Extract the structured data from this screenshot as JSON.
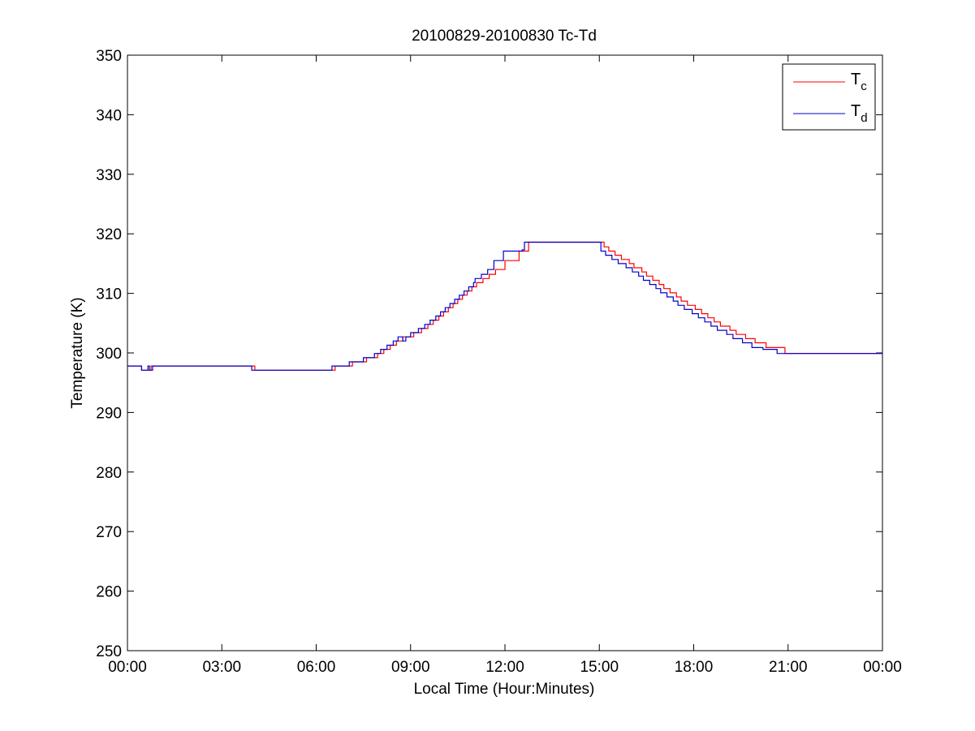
{
  "chart_data": {
    "type": "line",
    "title": "20100829-20100830 Tc-Td",
    "xlabel": "Local Time (Hour:Minutes)",
    "ylabel": "Temperature (K)",
    "x_unit": "hours",
    "xlim": [
      0,
      24
    ],
    "ylim": [
      250,
      350
    ],
    "xticks": [
      {
        "value": 0,
        "label": "00:00"
      },
      {
        "value": 3,
        "label": "03:00"
      },
      {
        "value": 6,
        "label": "06:00"
      },
      {
        "value": 9,
        "label": "09:00"
      },
      {
        "value": 12,
        "label": "12:00"
      },
      {
        "value": 15,
        "label": "15:00"
      },
      {
        "value": 18,
        "label": "18:00"
      },
      {
        "value": 21,
        "label": "21:00"
      },
      {
        "value": 24,
        "label": "00:00"
      }
    ],
    "yticks": [
      250,
      260,
      270,
      280,
      290,
      300,
      310,
      320,
      330,
      340,
      350
    ],
    "grid": false,
    "legend_position": "top-right",
    "series": [
      {
        "name": "Tc",
        "legend_main": "T",
        "legend_sub": "c",
        "color": "#ff0000",
        "step": true,
        "points": [
          [
            0.0,
            297.8
          ],
          [
            0.45,
            297.1
          ],
          [
            0.75,
            297.8
          ],
          [
            4.05,
            297.1
          ],
          [
            6.6,
            297.8
          ],
          [
            7.15,
            298.5
          ],
          [
            7.6,
            299.2
          ],
          [
            7.95,
            299.9
          ],
          [
            8.15,
            300.6
          ],
          [
            8.35,
            301.3
          ],
          [
            8.55,
            302.0
          ],
          [
            8.75,
            302.7
          ],
          [
            9.1,
            303.4
          ],
          [
            9.35,
            304.1
          ],
          [
            9.55,
            304.8
          ],
          [
            9.72,
            305.5
          ],
          [
            9.9,
            306.2
          ],
          [
            10.05,
            306.9
          ],
          [
            10.2,
            307.6
          ],
          [
            10.35,
            308.3
          ],
          [
            10.5,
            309.0
          ],
          [
            10.65,
            309.7
          ],
          [
            10.8,
            310.4
          ],
          [
            10.95,
            311.1
          ],
          [
            11.1,
            311.8
          ],
          [
            11.3,
            312.5
          ],
          [
            11.5,
            313.2
          ],
          [
            11.7,
            314.0
          ],
          [
            12.0,
            315.5
          ],
          [
            12.45,
            317.1
          ],
          [
            12.75,
            318.6
          ],
          [
            15.15,
            317.8
          ],
          [
            15.3,
            317.1
          ],
          [
            15.5,
            316.4
          ],
          [
            15.7,
            315.7
          ],
          [
            15.95,
            315.0
          ],
          [
            16.1,
            314.3
          ],
          [
            16.35,
            313.6
          ],
          [
            16.5,
            312.9
          ],
          [
            16.7,
            312.2
          ],
          [
            16.9,
            311.5
          ],
          [
            17.05,
            310.8
          ],
          [
            17.25,
            310.1
          ],
          [
            17.45,
            309.4
          ],
          [
            17.6,
            308.7
          ],
          [
            17.8,
            308.0
          ],
          [
            18.05,
            307.3
          ],
          [
            18.25,
            306.6
          ],
          [
            18.45,
            305.9
          ],
          [
            18.65,
            305.2
          ],
          [
            18.85,
            304.5
          ],
          [
            19.15,
            303.8
          ],
          [
            19.35,
            303.1
          ],
          [
            19.65,
            302.4
          ],
          [
            19.95,
            301.7
          ],
          [
            20.3,
            300.9
          ],
          [
            20.9,
            299.9
          ],
          [
            24.0,
            299.9
          ]
        ]
      },
      {
        "name": "Td",
        "legend_main": "T",
        "legend_sub": "d",
        "color": "#0000cc",
        "step": true,
        "points": [
          [
            0.0,
            297.8
          ],
          [
            0.45,
            297.1
          ],
          [
            0.65,
            297.8
          ],
          [
            0.7,
            297.1
          ],
          [
            0.8,
            297.8
          ],
          [
            3.95,
            297.1
          ],
          [
            6.5,
            297.8
          ],
          [
            7.05,
            298.5
          ],
          [
            7.5,
            299.2
          ],
          [
            7.85,
            299.9
          ],
          [
            8.05,
            300.6
          ],
          [
            8.25,
            301.3
          ],
          [
            8.45,
            302.0
          ],
          [
            8.6,
            302.7
          ],
          [
            8.75,
            302.0
          ],
          [
            8.85,
            302.7
          ],
          [
            9.0,
            303.4
          ],
          [
            9.25,
            304.1
          ],
          [
            9.45,
            304.8
          ],
          [
            9.62,
            305.5
          ],
          [
            9.8,
            306.2
          ],
          [
            9.95,
            306.9
          ],
          [
            10.1,
            307.6
          ],
          [
            10.25,
            308.3
          ],
          [
            10.4,
            309.0
          ],
          [
            10.55,
            309.7
          ],
          [
            10.7,
            310.4
          ],
          [
            10.85,
            311.1
          ],
          [
            11.0,
            311.8
          ],
          [
            11.05,
            312.5
          ],
          [
            11.25,
            313.2
          ],
          [
            11.45,
            314.0
          ],
          [
            11.65,
            315.5
          ],
          [
            11.95,
            317.1
          ],
          [
            12.55,
            317.3
          ],
          [
            12.62,
            318.6
          ],
          [
            15.05,
            317.1
          ],
          [
            15.2,
            316.4
          ],
          [
            15.4,
            315.7
          ],
          [
            15.6,
            315.0
          ],
          [
            15.85,
            314.3
          ],
          [
            16.05,
            313.6
          ],
          [
            16.25,
            312.9
          ],
          [
            16.4,
            312.2
          ],
          [
            16.6,
            311.5
          ],
          [
            16.8,
            310.8
          ],
          [
            16.95,
            310.1
          ],
          [
            17.15,
            309.4
          ],
          [
            17.35,
            308.7
          ],
          [
            17.5,
            308.0
          ],
          [
            17.7,
            307.3
          ],
          [
            17.95,
            306.6
          ],
          [
            18.15,
            305.9
          ],
          [
            18.35,
            305.2
          ],
          [
            18.55,
            304.5
          ],
          [
            18.75,
            303.8
          ],
          [
            19.05,
            303.1
          ],
          [
            19.25,
            302.4
          ],
          [
            19.55,
            301.7
          ],
          [
            19.85,
            300.9
          ],
          [
            20.2,
            300.6
          ],
          [
            20.65,
            299.9
          ],
          [
            23.85,
            299.9
          ],
          [
            24.0,
            299.9
          ]
        ]
      }
    ]
  }
}
